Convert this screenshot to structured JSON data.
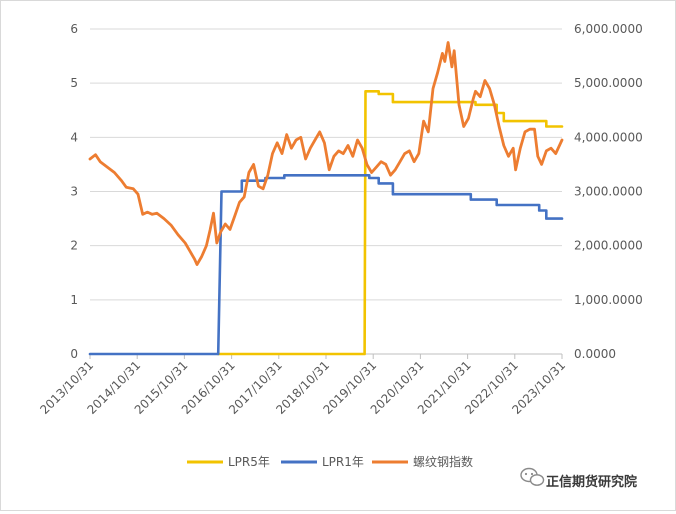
{
  "chart_data": {
    "type": "line",
    "title": "",
    "grid": true,
    "legend_position": "bottom",
    "x_ticks": [
      "2013/10/31",
      "2014/10/31",
      "2015/10/31",
      "2016/10/31",
      "2017/10/31",
      "2018/10/31",
      "2019/10/31",
      "2020/10/31",
      "2021/10/31",
      "2022/10/31",
      "2023/10/31"
    ],
    "x_range": [
      2013.833,
      2023.833
    ],
    "y_left": {
      "ticks": [
        "0",
        "1",
        "2",
        "3",
        "4",
        "5",
        "6"
      ],
      "range": [
        0,
        6
      ]
    },
    "y_right": {
      "ticks": [
        "0.0000",
        "1,000.0000",
        "2,000.0000",
        "3,000.0000",
        "4,000.0000",
        "5,000.0000",
        "6,000.0000"
      ],
      "range": [
        0,
        6000
      ]
    },
    "series": [
      {
        "name": "LPR5年",
        "axis": "left",
        "color": "#f2c300",
        "step": true,
        "points": [
          [
            2016.55,
            0
          ],
          [
            2019.65,
            0
          ],
          [
            2019.67,
            4.85
          ],
          [
            2019.95,
            4.85
          ],
          [
            2019.95,
            4.8
          ],
          [
            2020.25,
            4.8
          ],
          [
            2020.25,
            4.65
          ],
          [
            2022.0,
            4.65
          ],
          [
            2022.0,
            4.6
          ],
          [
            2022.45,
            4.6
          ],
          [
            2022.45,
            4.45
          ],
          [
            2022.6,
            4.45
          ],
          [
            2022.6,
            4.3
          ],
          [
            2023.5,
            4.3
          ],
          [
            2023.5,
            4.2
          ],
          [
            2023.833,
            4.2
          ]
        ]
      },
      {
        "name": "LPR1年",
        "axis": "left",
        "color": "#4472c4",
        "step": true,
        "points": [
          [
            2013.833,
            0
          ],
          [
            2016.55,
            0
          ],
          [
            2016.62,
            3.0
          ],
          [
            2017.05,
            3.0
          ],
          [
            2017.05,
            3.2
          ],
          [
            2017.55,
            3.2
          ],
          [
            2017.55,
            3.25
          ],
          [
            2017.95,
            3.25
          ],
          [
            2017.95,
            3.3
          ],
          [
            2019.75,
            3.3
          ],
          [
            2019.75,
            3.25
          ],
          [
            2019.95,
            3.25
          ],
          [
            2019.95,
            3.15
          ],
          [
            2020.25,
            3.15
          ],
          [
            2020.25,
            2.95
          ],
          [
            2021.9,
            2.95
          ],
          [
            2021.9,
            2.85
          ],
          [
            2022.45,
            2.85
          ],
          [
            2022.45,
            2.75
          ],
          [
            2023.35,
            2.75
          ],
          [
            2023.35,
            2.65
          ],
          [
            2023.5,
            2.65
          ],
          [
            2023.5,
            2.5
          ],
          [
            2023.833,
            2.5
          ]
        ]
      },
      {
        "name": "螺纹钢指数",
        "axis": "right",
        "color": "#ed7d31",
        "step": false,
        "points": [
          [
            2013.833,
            3600
          ],
          [
            2013.95,
            3680
          ],
          [
            2014.05,
            3550
          ],
          [
            2014.2,
            3450
          ],
          [
            2014.35,
            3350
          ],
          [
            2014.5,
            3200
          ],
          [
            2014.6,
            3080
          ],
          [
            2014.75,
            3050
          ],
          [
            2014.85,
            2950
          ],
          [
            2014.95,
            2580
          ],
          [
            2015.05,
            2620
          ],
          [
            2015.15,
            2580
          ],
          [
            2015.25,
            2600
          ],
          [
            2015.4,
            2500
          ],
          [
            2015.55,
            2380
          ],
          [
            2015.7,
            2200
          ],
          [
            2015.85,
            2050
          ],
          [
            2015.95,
            1900
          ],
          [
            2016.05,
            1750
          ],
          [
            2016.1,
            1650
          ],
          [
            2016.2,
            1800
          ],
          [
            2016.3,
            2000
          ],
          [
            2016.38,
            2300
          ],
          [
            2016.45,
            2600
          ],
          [
            2016.52,
            2050
          ],
          [
            2016.6,
            2250
          ],
          [
            2016.7,
            2400
          ],
          [
            2016.8,
            2300
          ],
          [
            2016.9,
            2550
          ],
          [
            2017.0,
            2800
          ],
          [
            2017.1,
            2900
          ],
          [
            2017.2,
            3350
          ],
          [
            2017.3,
            3500
          ],
          [
            2017.4,
            3100
          ],
          [
            2017.5,
            3050
          ],
          [
            2017.6,
            3300
          ],
          [
            2017.7,
            3700
          ],
          [
            2017.8,
            3900
          ],
          [
            2017.9,
            3700
          ],
          [
            2018.0,
            4050
          ],
          [
            2018.1,
            3800
          ],
          [
            2018.2,
            3950
          ],
          [
            2018.3,
            4000
          ],
          [
            2018.4,
            3600
          ],
          [
            2018.5,
            3800
          ],
          [
            2018.6,
            3950
          ],
          [
            2018.7,
            4100
          ],
          [
            2018.8,
            3900
          ],
          [
            2018.9,
            3400
          ],
          [
            2019.0,
            3650
          ],
          [
            2019.1,
            3750
          ],
          [
            2019.2,
            3700
          ],
          [
            2019.3,
            3850
          ],
          [
            2019.4,
            3650
          ],
          [
            2019.5,
            3950
          ],
          [
            2019.6,
            3800
          ],
          [
            2019.7,
            3500
          ],
          [
            2019.8,
            3350
          ],
          [
            2019.9,
            3450
          ],
          [
            2020.0,
            3550
          ],
          [
            2020.1,
            3500
          ],
          [
            2020.2,
            3300
          ],
          [
            2020.3,
            3400
          ],
          [
            2020.4,
            3550
          ],
          [
            2020.5,
            3700
          ],
          [
            2020.6,
            3750
          ],
          [
            2020.7,
            3550
          ],
          [
            2020.8,
            3700
          ],
          [
            2020.9,
            4300
          ],
          [
            2021.0,
            4100
          ],
          [
            2021.1,
            4900
          ],
          [
            2021.2,
            5200
          ],
          [
            2021.3,
            5550
          ],
          [
            2021.35,
            5400
          ],
          [
            2021.42,
            5750
          ],
          [
            2021.5,
            5300
          ],
          [
            2021.55,
            5600
          ],
          [
            2021.65,
            4600
          ],
          [
            2021.75,
            4200
          ],
          [
            2021.85,
            4350
          ],
          [
            2021.95,
            4700
          ],
          [
            2022.0,
            4850
          ],
          [
            2022.1,
            4750
          ],
          [
            2022.2,
            5050
          ],
          [
            2022.3,
            4900
          ],
          [
            2022.4,
            4600
          ],
          [
            2022.5,
            4200
          ],
          [
            2022.6,
            3850
          ],
          [
            2022.7,
            3650
          ],
          [
            2022.8,
            3800
          ],
          [
            2022.85,
            3400
          ],
          [
            2022.95,
            3800
          ],
          [
            2023.05,
            4100
          ],
          [
            2023.15,
            4150
          ],
          [
            2023.25,
            4150
          ],
          [
            2023.32,
            3650
          ],
          [
            2023.4,
            3500
          ],
          [
            2023.5,
            3750
          ],
          [
            2023.6,
            3800
          ],
          [
            2023.7,
            3700
          ],
          [
            2023.833,
            3950
          ]
        ]
      }
    ]
  },
  "watermark": {
    "text": "正信期货研究院",
    "icon": "wechat-icon"
  }
}
